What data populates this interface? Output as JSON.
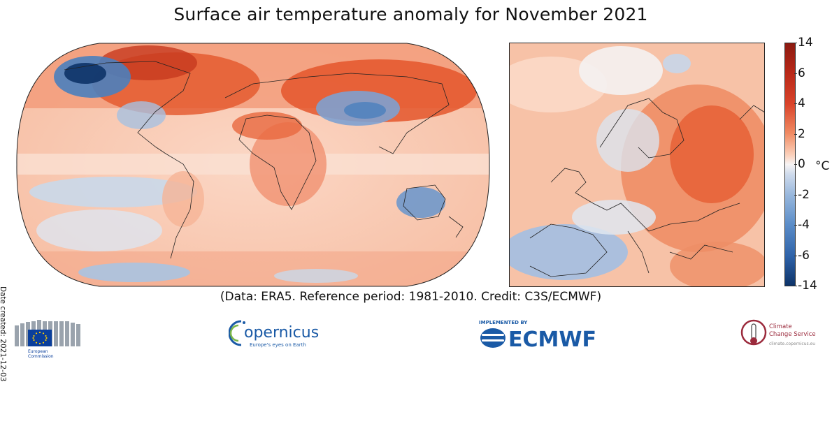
{
  "title": "Surface air temperature anomaly for November 2021",
  "date_created": "Date created: 2021-12-03",
  "credit": "(Data: ERA5.  Reference period: 1981-2010.  Credit: C3S/ECMWF)",
  "colorbar": {
    "unit": "°C",
    "ticks": [
      "14",
      "6",
      "4",
      "2",
      "0",
      "-2",
      "-4",
      "-6",
      "-14"
    ],
    "colors": {
      "strong_warm": "#9b1b12",
      "warm": "#e4562b",
      "mild_warm": "#f8b796",
      "neutral": "#f7f4f4",
      "mild_cool": "#b8cbe3",
      "cool": "#4b7fbd",
      "strong_cool": "#0d3368"
    }
  },
  "logos": {
    "ec": {
      "line1": "European",
      "line2": "Commission"
    },
    "copernicus": {
      "name": "opernicus",
      "tagline": "Europe's eyes on Earth"
    },
    "ecmwf": {
      "implemented_by": "IMPLEMENTED BY",
      "name": "ECMWF"
    },
    "c3s": {
      "line1": "Climate",
      "line2": "Change Service",
      "url": "climate.copernicus.eu"
    }
  }
}
